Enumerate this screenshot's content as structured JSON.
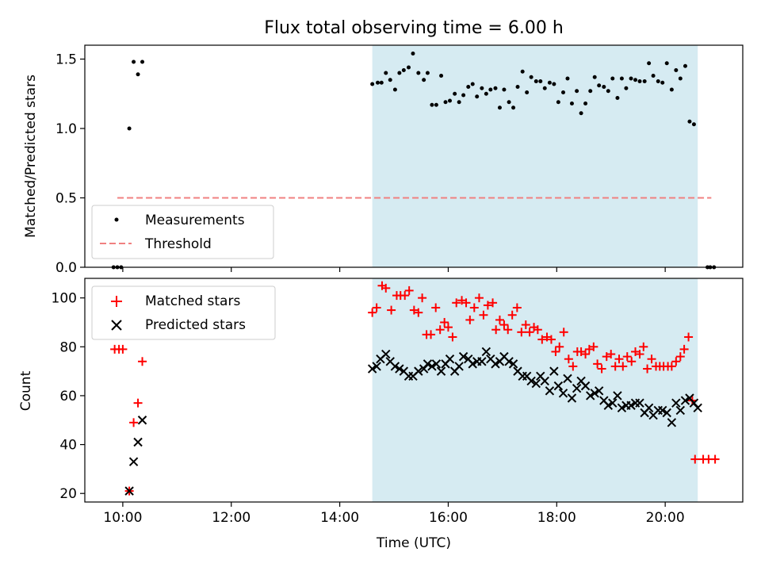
{
  "chart_data": {
    "title": "Flux total observing time = 6.00 h",
    "xlabel": "Time (UTC)",
    "xlim": [
      9.3,
      21.43
    ],
    "x_ticks": [
      {
        "x": 10.0,
        "label": "10:00"
      },
      {
        "x": 12.0,
        "label": "12:00"
      },
      {
        "x": 14.0,
        "label": "14:00"
      },
      {
        "x": 16.0,
        "label": "16:00"
      },
      {
        "x": 18.0,
        "label": "18:00"
      },
      {
        "x": 20.0,
        "label": "20:00"
      }
    ],
    "highlight_span": {
      "start": 14.6,
      "end": 20.6,
      "color": "#add8e6"
    },
    "top_panel": {
      "type": "scatter",
      "ylabel": "Matched/Predicted stars",
      "ylim": [
        0,
        1.6
      ],
      "y_ticks": [
        {
          "y": 0.0,
          "label": "0.0"
        },
        {
          "y": 0.5,
          "label": "0.5"
        },
        {
          "y": 1.0,
          "label": "1.0"
        },
        {
          "y": 1.5,
          "label": "1.5"
        }
      ],
      "threshold": {
        "name": "Threshold",
        "value": 0.5,
        "x_start": 9.9,
        "x_end": 20.85,
        "color": "#f08080"
      },
      "measurements": {
        "name": "Measurements",
        "color": "#000000",
        "x": [
          9.83,
          9.9,
          9.97,
          10.12,
          10.2,
          10.28,
          10.36,
          14.6,
          14.7,
          14.77,
          14.85,
          14.93,
          15.02,
          15.1,
          15.18,
          15.27,
          15.35,
          15.45,
          15.55,
          15.62,
          15.7,
          15.78,
          15.87,
          15.95,
          16.03,
          16.12,
          16.2,
          16.28,
          16.37,
          16.45,
          16.53,
          16.62,
          16.7,
          16.78,
          16.87,
          16.95,
          17.03,
          17.12,
          17.2,
          17.28,
          17.37,
          17.45,
          17.53,
          17.62,
          17.7,
          17.78,
          17.87,
          17.95,
          18.03,
          18.12,
          18.2,
          18.28,
          18.37,
          18.45,
          18.53,
          18.62,
          18.7,
          18.78,
          18.87,
          18.95,
          19.03,
          19.12,
          19.2,
          19.28,
          19.37,
          19.45,
          19.53,
          19.62,
          19.7,
          19.78,
          19.87,
          19.95,
          20.03,
          20.12,
          20.2,
          20.28,
          20.37,
          20.45,
          20.53,
          20.78,
          20.83,
          20.9
        ],
        "y": [
          0,
          0,
          0,
          1.0,
          1.48,
          1.39,
          1.48,
          1.32,
          1.33,
          1.33,
          1.4,
          1.35,
          1.28,
          1.4,
          1.42,
          1.44,
          1.54,
          1.4,
          1.35,
          1.4,
          1.17,
          1.17,
          1.38,
          1.19,
          1.2,
          1.25,
          1.19,
          1.24,
          1.3,
          1.32,
          1.23,
          1.29,
          1.25,
          1.28,
          1.29,
          1.15,
          1.28,
          1.19,
          1.15,
          1.3,
          1.41,
          1.26,
          1.37,
          1.34,
          1.34,
          1.29,
          1.33,
          1.32,
          1.19,
          1.26,
          1.36,
          1.18,
          1.27,
          1.11,
          1.18,
          1.27,
          1.37,
          1.31,
          1.3,
          1.27,
          1.36,
          1.22,
          1.36,
          1.29,
          1.36,
          1.35,
          1.34,
          1.34,
          1.47,
          1.38,
          1.34,
          1.33,
          1.47,
          1.28,
          1.42,
          1.36,
          1.45,
          1.05,
          1.03,
          0,
          0,
          0
        ]
      }
    },
    "bottom_panel": {
      "type": "scatter",
      "ylabel": "Count",
      "ylim": [
        16.5,
        108
      ],
      "y_ticks": [
        {
          "y": 20,
          "label": "20"
        },
        {
          "y": 40,
          "label": "40"
        },
        {
          "y": 60,
          "label": "60"
        },
        {
          "y": 80,
          "label": "80"
        },
        {
          "y": 100,
          "label": "100"
        }
      ],
      "series": [
        {
          "name": "Matched stars",
          "marker": "plus",
          "color": "#ff0000",
          "x": [
            9.85,
            9.93,
            10.0,
            10.12,
            10.2,
            10.28,
            10.36,
            14.6,
            14.68,
            14.78,
            14.85,
            14.95,
            15.05,
            15.12,
            15.2,
            15.28,
            15.37,
            15.45,
            15.52,
            15.6,
            15.68,
            15.77,
            15.85,
            15.93,
            16.0,
            16.08,
            16.15,
            16.25,
            16.33,
            16.4,
            16.48,
            16.57,
            16.65,
            16.73,
            16.82,
            16.88,
            16.95,
            17.03,
            17.1,
            17.18,
            17.27,
            17.35,
            17.43,
            17.5,
            17.58,
            17.65,
            17.73,
            17.82,
            17.9,
            17.98,
            18.05,
            18.13,
            18.22,
            18.3,
            18.38,
            18.45,
            18.53,
            18.6,
            18.68,
            18.75,
            18.83,
            18.92,
            19.0,
            19.08,
            19.15,
            19.22,
            19.3,
            19.38,
            19.45,
            19.53,
            19.6,
            19.67,
            19.75,
            19.83,
            19.9,
            19.97,
            20.05,
            20.12,
            20.2,
            20.28,
            20.35,
            20.43,
            20.5,
            20.55,
            20.7,
            20.8,
            20.92
          ],
          "y": [
            79,
            79,
            79,
            21,
            49,
            57,
            74,
            94,
            96,
            105,
            104,
            95,
            101,
            101,
            101,
            103,
            95,
            94,
            100,
            85,
            85,
            96,
            87,
            90,
            88,
            84,
            98,
            99,
            98,
            91,
            96,
            100,
            93,
            97,
            98,
            87,
            91,
            89,
            87,
            93,
            96,
            86,
            89,
            86,
            88,
            87,
            83,
            84,
            83,
            78,
            80,
            86,
            75,
            72,
            78,
            78,
            77,
            79,
            80,
            73,
            71,
            76,
            77,
            72,
            75,
            72,
            76,
            74,
            78,
            77,
            80,
            71,
            75,
            72,
            72,
            72,
            72,
            72,
            74,
            76,
            79,
            84,
            58,
            34,
            34,
            34,
            34
          ]
        },
        {
          "name": "Predicted stars",
          "marker": "x",
          "color": "#000000",
          "x": [
            10.12,
            10.2,
            10.28,
            10.36,
            14.6,
            14.68,
            14.75,
            14.85,
            14.93,
            15.02,
            15.1,
            15.18,
            15.27,
            15.35,
            15.45,
            15.55,
            15.62,
            15.7,
            15.78,
            15.87,
            15.95,
            16.03,
            16.12,
            16.2,
            16.28,
            16.37,
            16.45,
            16.53,
            16.62,
            16.7,
            16.78,
            16.87,
            16.95,
            17.03,
            17.12,
            17.2,
            17.28,
            17.37,
            17.45,
            17.53,
            17.62,
            17.7,
            17.78,
            17.87,
            17.95,
            18.03,
            18.12,
            18.2,
            18.28,
            18.37,
            18.45,
            18.53,
            18.62,
            18.7,
            18.78,
            18.87,
            18.95,
            19.03,
            19.12,
            19.2,
            19.28,
            19.37,
            19.45,
            19.53,
            19.62,
            19.7,
            19.78,
            19.87,
            19.95,
            20.03,
            20.12,
            20.2,
            20.28,
            20.37,
            20.45,
            20.53,
            20.6
          ],
          "y": [
            21,
            33,
            41,
            50,
            71,
            72,
            75,
            77,
            74,
            72,
            71,
            70,
            68,
            68,
            70,
            71,
            73,
            72,
            73,
            70,
            73,
            75,
            70,
            72,
            76,
            75,
            73,
            74,
            74,
            78,
            75,
            73,
            74,
            76,
            74,
            73,
            70,
            68,
            68,
            66,
            65,
            68,
            66,
            62,
            70,
            64,
            61,
            67,
            59,
            63,
            66,
            64,
            60,
            61,
            62,
            58,
            56,
            57,
            60,
            55,
            56,
            56,
            57,
            57,
            53,
            55,
            52,
            54,
            54,
            53,
            49,
            57,
            54,
            58,
            59,
            57,
            55
          ]
        }
      ]
    }
  }
}
